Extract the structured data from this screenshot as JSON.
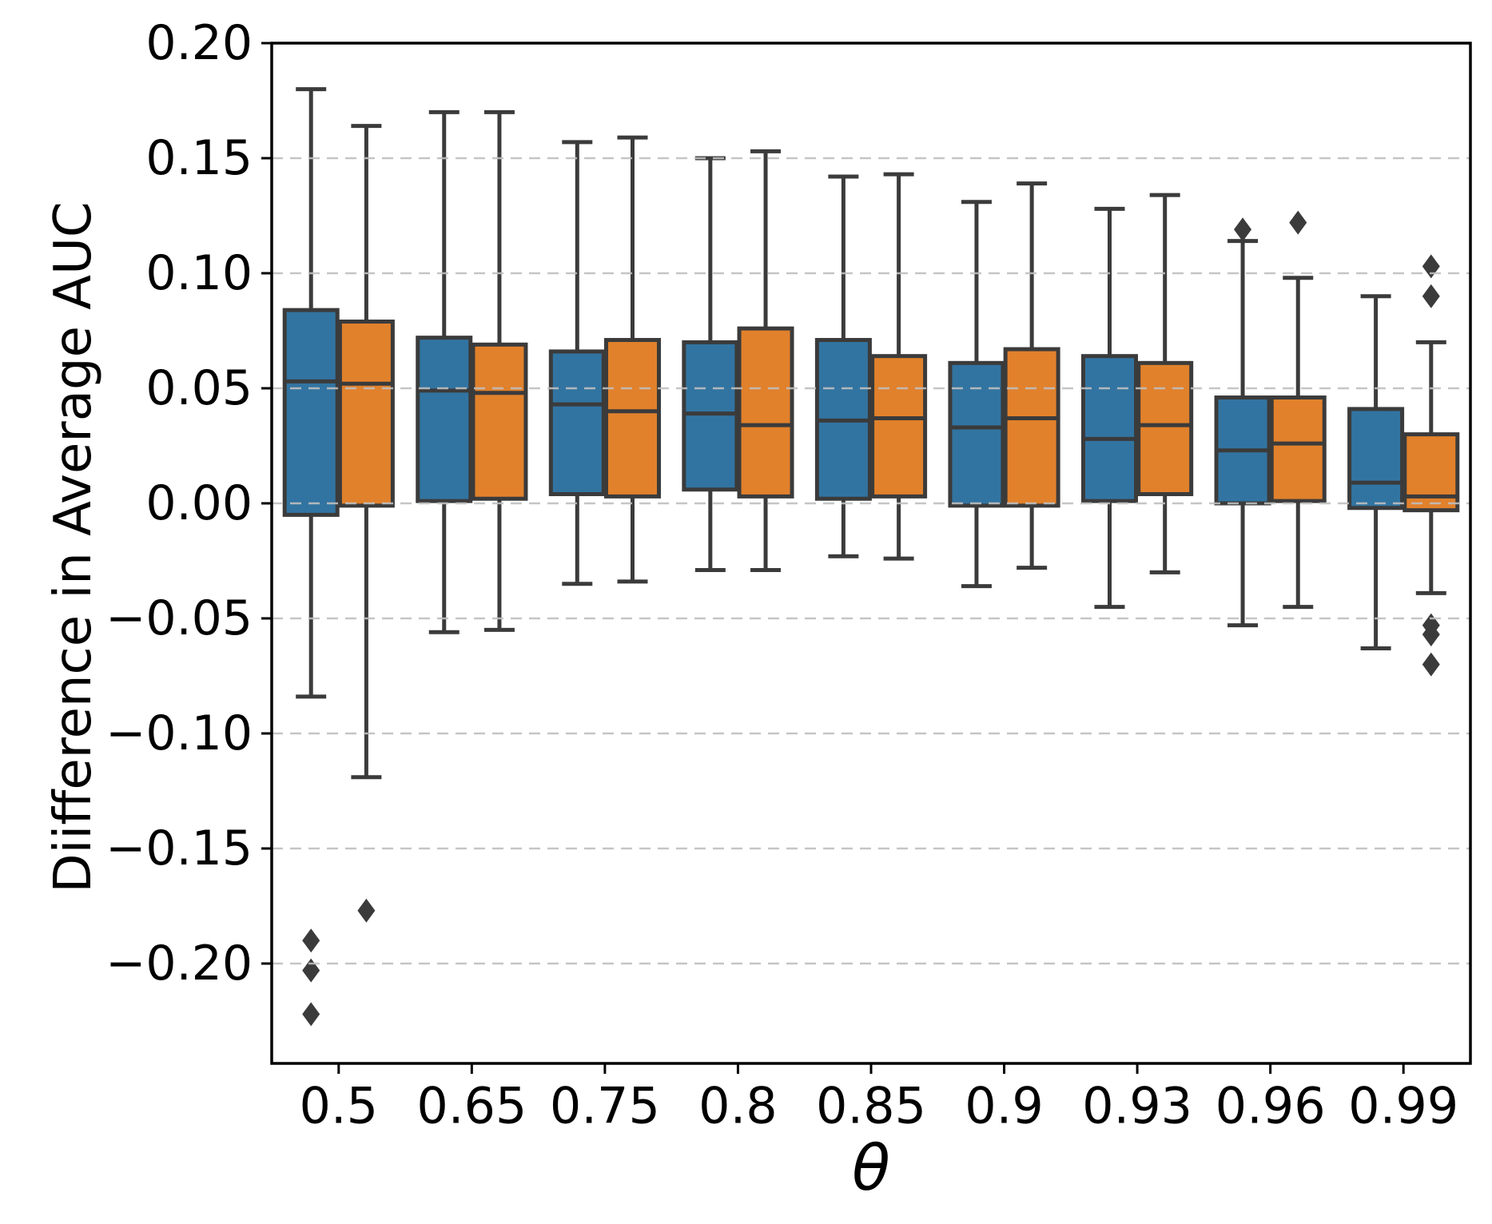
{
  "figure": {
    "background": "#ffffff",
    "plot_border_color": "#000000",
    "grid_color": "#bfbfbf",
    "box_edge_color": "#3B3B3B",
    "flier_color": "#3B3B3B"
  },
  "chart_data": {
    "type": "grouped_boxplot",
    "title": "",
    "xlabel": "θ",
    "ylabel": "Diifference in Average AUC",
    "x_categories": [
      "0.5",
      "0.65",
      "0.75",
      "0.8",
      "0.85",
      "0.9",
      "0.93",
      "0.96",
      "0.99"
    ],
    "ylim": [
      -0.245,
      0.2
    ],
    "yticks": [
      {
        "v": 0.2,
        "label": "0.20",
        "grid": false
      },
      {
        "v": 0.15,
        "label": "0.15",
        "grid": true
      },
      {
        "v": 0.1,
        "label": "0.10",
        "grid": true
      },
      {
        "v": 0.05,
        "label": "0.05",
        "grid": true
      },
      {
        "v": 0.0,
        "label": "0.00",
        "grid": true
      },
      {
        "v": -0.05,
        "label": "−0.05",
        "grid": true
      },
      {
        "v": -0.1,
        "label": "−0.10",
        "grid": true
      },
      {
        "v": -0.15,
        "label": "−0.15",
        "grid": true
      },
      {
        "v": -0.2,
        "label": "−0.20",
        "grid": true
      }
    ],
    "grid": "horizontal-dashed-over-boxes",
    "legend": "none",
    "series": [
      {
        "name": "blue",
        "color": "#3274A1",
        "boxes": [
          {
            "whislo": -0.084,
            "q1": -0.005,
            "med": 0.053,
            "q3": 0.084,
            "whishi": 0.18,
            "fliers": [
              -0.19,
              -0.203,
              -0.222
            ]
          },
          {
            "whislo": -0.056,
            "q1": 0.001,
            "med": 0.049,
            "q3": 0.072,
            "whishi": 0.17,
            "fliers": []
          },
          {
            "whislo": -0.035,
            "q1": 0.004,
            "med": 0.043,
            "q3": 0.066,
            "whishi": 0.157,
            "fliers": []
          },
          {
            "whislo": -0.029,
            "q1": 0.006,
            "med": 0.039,
            "q3": 0.07,
            "whishi": 0.15,
            "fliers": []
          },
          {
            "whislo": -0.023,
            "q1": 0.002,
            "med": 0.036,
            "q3": 0.071,
            "whishi": 0.142,
            "fliers": []
          },
          {
            "whislo": -0.036,
            "q1": -0.001,
            "med": 0.033,
            "q3": 0.061,
            "whishi": 0.131,
            "fliers": []
          },
          {
            "whislo": -0.045,
            "q1": 0.001,
            "med": 0.028,
            "q3": 0.064,
            "whishi": 0.128,
            "fliers": []
          },
          {
            "whislo": -0.053,
            "q1": 0.0,
            "med": 0.023,
            "q3": 0.046,
            "whishi": 0.114,
            "fliers": [
              0.119
            ]
          },
          {
            "whislo": -0.063,
            "q1": -0.002,
            "med": 0.009,
            "q3": 0.041,
            "whishi": 0.09,
            "fliers": []
          }
        ]
      },
      {
        "name": "orange",
        "color": "#E1812C",
        "boxes": [
          {
            "whislo": -0.119,
            "q1": -0.001,
            "med": 0.052,
            "q3": 0.079,
            "whishi": 0.164,
            "fliers": [
              -0.177
            ]
          },
          {
            "whislo": -0.055,
            "q1": 0.002,
            "med": 0.048,
            "q3": 0.069,
            "whishi": 0.17,
            "fliers": []
          },
          {
            "whislo": -0.034,
            "q1": 0.003,
            "med": 0.04,
            "q3": 0.071,
            "whishi": 0.159,
            "fliers": []
          },
          {
            "whislo": -0.029,
            "q1": 0.003,
            "med": 0.034,
            "q3": 0.076,
            "whishi": 0.153,
            "fliers": []
          },
          {
            "whislo": -0.024,
            "q1": 0.003,
            "med": 0.037,
            "q3": 0.064,
            "whishi": 0.143,
            "fliers": []
          },
          {
            "whislo": -0.028,
            "q1": -0.001,
            "med": 0.037,
            "q3": 0.067,
            "whishi": 0.139,
            "fliers": []
          },
          {
            "whislo": -0.03,
            "q1": 0.004,
            "med": 0.034,
            "q3": 0.061,
            "whishi": 0.134,
            "fliers": []
          },
          {
            "whislo": -0.045,
            "q1": 0.001,
            "med": 0.026,
            "q3": 0.046,
            "whishi": 0.098,
            "fliers": [
              0.122
            ]
          },
          {
            "whislo": -0.039,
            "q1": -0.003,
            "med": 0.003,
            "q3": 0.03,
            "whishi": 0.07,
            "fliers": [
              0.103,
              0.09,
              -0.053,
              -0.057,
              -0.07
            ]
          }
        ]
      }
    ]
  }
}
